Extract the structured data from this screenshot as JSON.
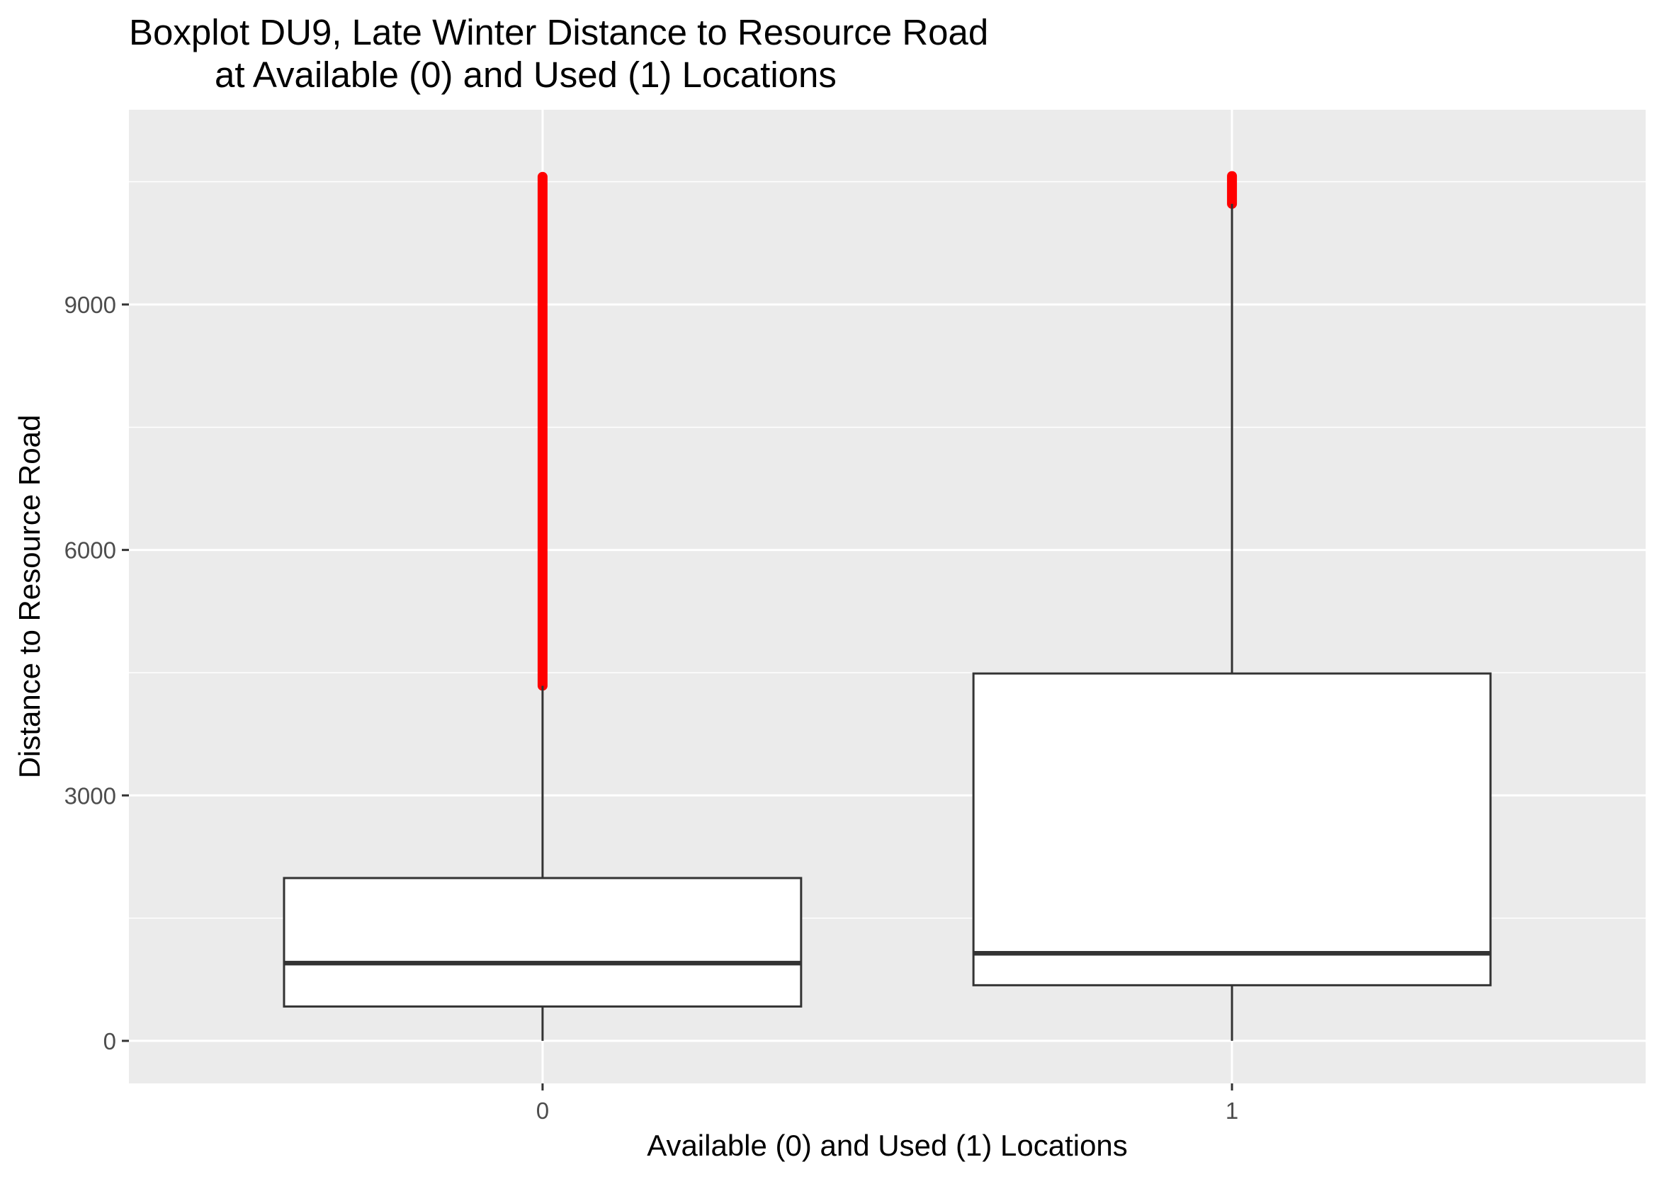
{
  "chart_data": {
    "type": "box",
    "title_lines": [
      "Boxplot DU9, Late Winter Distance to Resource Road",
      "at Available (0) and Used (1) Locations"
    ],
    "xlabel": "Available (0) and Used (1) Locations",
    "ylabel": "Distance to Resource Road",
    "categories": [
      "0",
      "1"
    ],
    "yticks": [
      0,
      3000,
      6000,
      9000
    ],
    "ylim": [
      -520,
      11380
    ],
    "grid": true,
    "outlier_color": "#ff0000",
    "boxes": [
      {
        "category": "0",
        "whisker_low": 0,
        "q1": 420,
        "median": 950,
        "q3": 1990,
        "whisker_high": 4340,
        "outlier_min": 4340,
        "outlier_max": 10560
      },
      {
        "category": "1",
        "whisker_low": 0,
        "q1": 680,
        "median": 1070,
        "q3": 4490,
        "whisker_high": 10230,
        "outlier_min": 10230,
        "outlier_max": 10570
      }
    ]
  }
}
